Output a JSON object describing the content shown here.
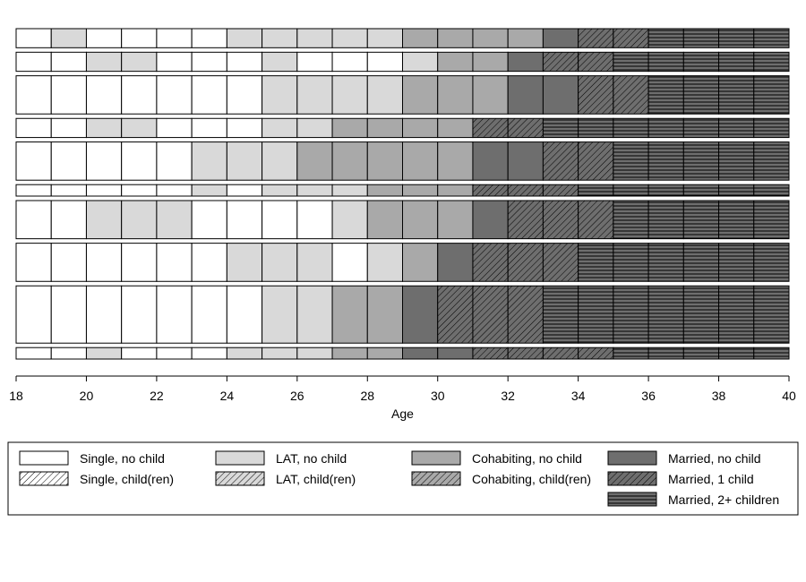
{
  "chart_data": {
    "type": "sequence-index",
    "title": "",
    "xlabel": "Age",
    "ylabel": "",
    "xlim": [
      18,
      40
    ],
    "x_ticks": [
      "18",
      "20",
      "22",
      "24",
      "26",
      "28",
      "30",
      "32",
      "34",
      "36",
      "38",
      "40"
    ],
    "states": [
      {
        "code": "SN",
        "label": "Single, no child",
        "fill": "#ffffff",
        "pattern": "none"
      },
      {
        "code": "SC",
        "label": "Single, child(ren)",
        "fill": "#ffffff",
        "pattern": "diagonal"
      },
      {
        "code": "LN",
        "label": "LAT, no child",
        "fill": "#d9d9d9",
        "pattern": "none"
      },
      {
        "code": "LC",
        "label": "LAT, child(ren)",
        "fill": "#d9d9d9",
        "pattern": "diagonal"
      },
      {
        "code": "CN",
        "label": "Cohabiting, no child",
        "fill": "#a9a9a9",
        "pattern": "none"
      },
      {
        "code": "CC",
        "label": "Cohabiting, child(ren)",
        "fill": "#a9a9a9",
        "pattern": "diagonal"
      },
      {
        "code": "MN",
        "label": "Married, no child",
        "fill": "#6e6e6e",
        "pattern": "none"
      },
      {
        "code": "M1",
        "label": "Married, 1 child",
        "fill": "#6e6e6e",
        "pattern": "diagonal"
      },
      {
        "code": "M2",
        "label": "Married, 2+ children",
        "fill": "#6e6e6e",
        "pattern": "horizontal"
      }
    ],
    "sequence_weights": [
      1,
      1,
      2,
      1,
      2,
      0.6,
      2,
      2,
      3,
      0.6
    ],
    "sequences": [
      [
        "SN",
        "LN",
        "SN",
        "SN",
        "SN",
        "SN",
        "LN",
        "LN",
        "LN",
        "LN",
        "LN",
        "CN",
        "CN",
        "CN",
        "CN",
        "MN",
        "M1",
        "M1",
        "M2",
        "M2",
        "M2",
        "M2"
      ],
      [
        "SN",
        "SN",
        "LN",
        "LN",
        "SN",
        "SN",
        "SN",
        "LN",
        "SN",
        "SN",
        "SN",
        "LN",
        "CN",
        "CN",
        "MN",
        "M1",
        "M1",
        "M2",
        "M2",
        "M2",
        "M2",
        "M2"
      ],
      [
        "SN",
        "SN",
        "SN",
        "SN",
        "SN",
        "SN",
        "SN",
        "LN",
        "LN",
        "LN",
        "LN",
        "CN",
        "CN",
        "CN",
        "MN",
        "MN",
        "M1",
        "M1",
        "M2",
        "M2",
        "M2",
        "M2"
      ],
      [
        "SN",
        "SN",
        "LN",
        "LN",
        "SN",
        "SN",
        "SN",
        "LN",
        "LN",
        "CN",
        "CN",
        "CN",
        "CN",
        "M1",
        "M1",
        "M2",
        "M2",
        "M2",
        "M2",
        "M2",
        "M2",
        "M2"
      ],
      [
        "SN",
        "SN",
        "SN",
        "SN",
        "SN",
        "LN",
        "LN",
        "LN",
        "CN",
        "CN",
        "CN",
        "CN",
        "CN",
        "MN",
        "MN",
        "M1",
        "M1",
        "M2",
        "M2",
        "M2",
        "M2",
        "M2"
      ],
      [
        "SN",
        "SN",
        "SN",
        "SN",
        "SN",
        "LN",
        "SN",
        "LN",
        "LN",
        "LN",
        "CN",
        "CN",
        "CN",
        "M1",
        "M1",
        "M1",
        "M2",
        "M2",
        "M2",
        "M2",
        "M2",
        "M2"
      ],
      [
        "SN",
        "SN",
        "LN",
        "LN",
        "LN",
        "SN",
        "SN",
        "SN",
        "SN",
        "LN",
        "CN",
        "CN",
        "CN",
        "MN",
        "M1",
        "M1",
        "M1",
        "M2",
        "M2",
        "M2",
        "M2",
        "M2"
      ],
      [
        "SN",
        "SN",
        "SN",
        "SN",
        "SN",
        "SN",
        "LN",
        "LN",
        "LN",
        "SN",
        "LN",
        "CN",
        "MN",
        "M1",
        "M1",
        "M1",
        "M2",
        "M2",
        "M2",
        "M2",
        "M2",
        "M2"
      ],
      [
        "SN",
        "SN",
        "SN",
        "SN",
        "SN",
        "SN",
        "SN",
        "LN",
        "LN",
        "CN",
        "CN",
        "MN",
        "M1",
        "M1",
        "M1",
        "M2",
        "M2",
        "M2",
        "M2",
        "M2",
        "M2",
        "M2"
      ],
      [
        "SN",
        "SN",
        "LN",
        "SN",
        "SN",
        "SN",
        "LN",
        "LN",
        "LN",
        "CN",
        "CN",
        "MN",
        "MN",
        "M1",
        "M1",
        "M1",
        "M1",
        "M2",
        "M2",
        "M2",
        "M2",
        "M2"
      ]
    ],
    "legend_position": "bottom"
  }
}
